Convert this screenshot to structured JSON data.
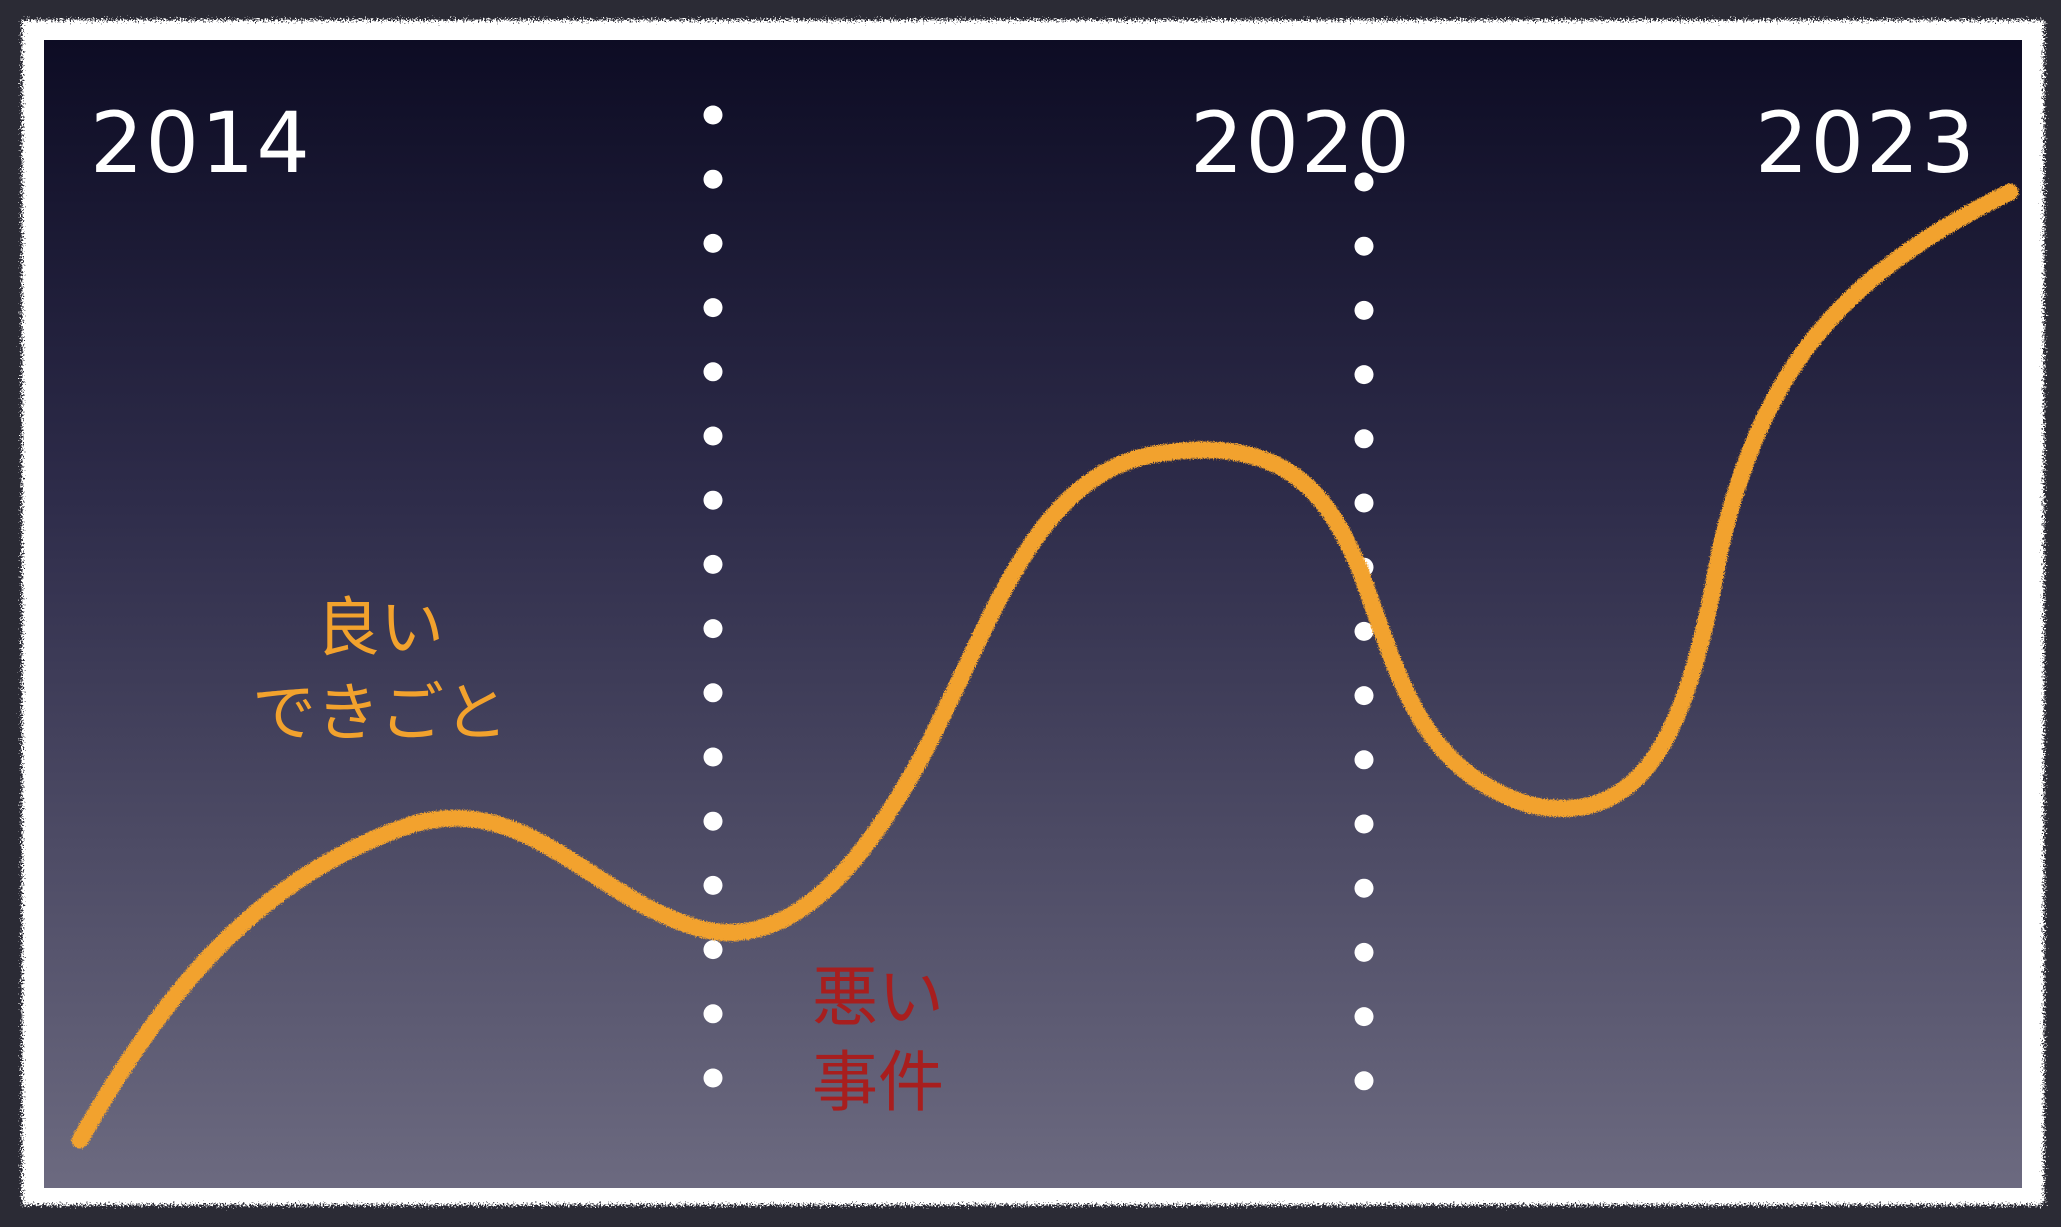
{
  "years": {
    "left": "2014",
    "middle": "2020",
    "right": "2023"
  },
  "labels": {
    "good_line1": "良い",
    "good_line2": "できごと",
    "bad_line1": "悪い",
    "bad_line2": "事件"
  },
  "colors": {
    "background_top": "#0d0c24",
    "background_bottom": "#6c6a80",
    "curve": "#f2a22d",
    "good_text": "#f2a22d",
    "bad_text": "#a81e1e",
    "frame": "#ffffff",
    "dots": "#ffffff",
    "year_text": "#ffffff"
  }
}
